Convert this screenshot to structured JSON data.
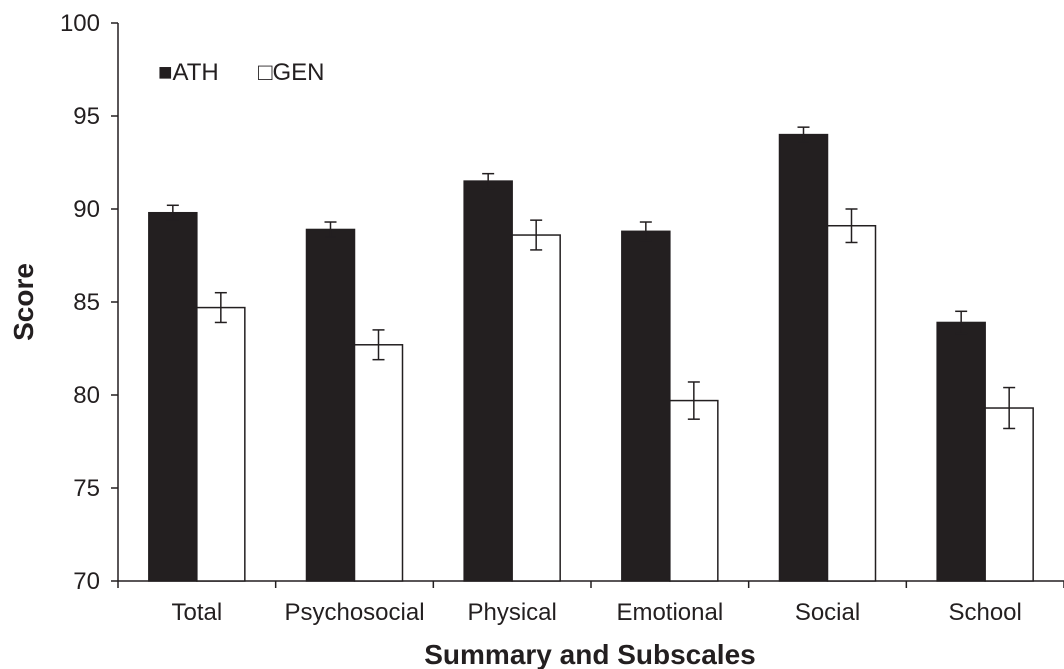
{
  "chart_data": {
    "type": "bar",
    "title": "",
    "xlabel": "Summary and Subscales",
    "ylabel": "Score",
    "ylim": [
      70,
      100
    ],
    "yticks": [
      70,
      75,
      80,
      85,
      90,
      95,
      100
    ],
    "categories": [
      "Total",
      "Psychosocial",
      "Physical",
      "Emotional",
      "Social",
      "School"
    ],
    "series": [
      {
        "name": "ATH",
        "color": "#231f20",
        "values": [
          89.8,
          88.9,
          91.5,
          88.8,
          94.0,
          83.9
        ],
        "error": [
          0.4,
          0.4,
          0.4,
          0.5,
          0.4,
          0.6
        ]
      },
      {
        "name": "GEN",
        "color": "#ffffff",
        "values": [
          84.7,
          82.7,
          88.6,
          79.7,
          89.1,
          79.3
        ],
        "error": [
          0.8,
          0.8,
          0.8,
          1.0,
          0.9,
          1.1
        ]
      }
    ],
    "legend": {
      "position": "top-left",
      "markers": [
        "■",
        "□"
      ]
    },
    "grid": false
  }
}
